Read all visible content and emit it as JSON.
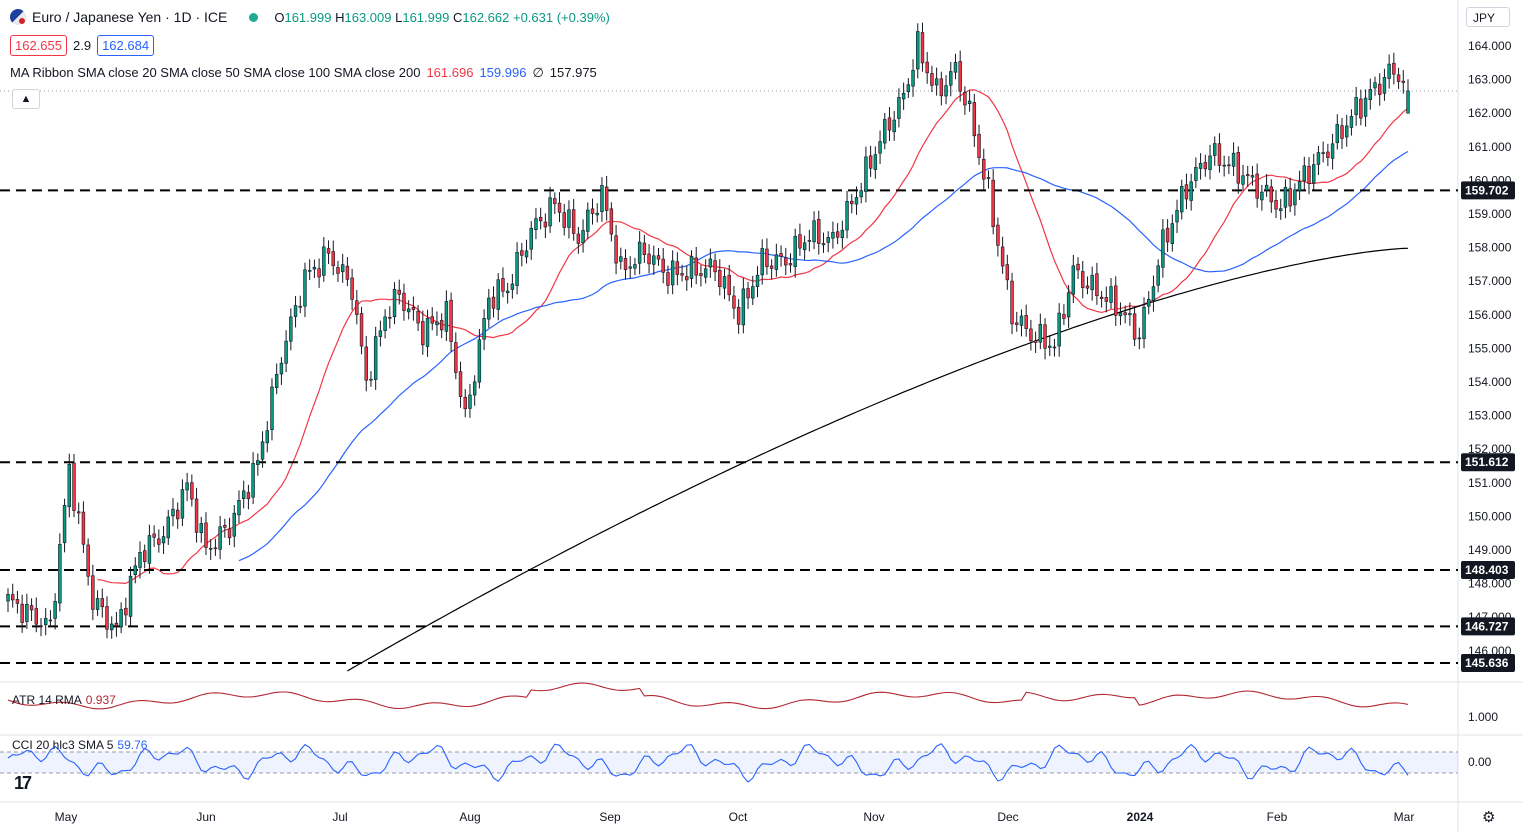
{
  "header": {
    "symbol": "Euro / Japanese Yen · 1D · ICE",
    "ohlc": [
      {
        "k": "O",
        "v": "161.999"
      },
      {
        "k": "H",
        "v": "163.009"
      },
      {
        "k": "L",
        "v": "161.999"
      },
      {
        "k": "C",
        "v": "162.662"
      }
    ],
    "change": "+0.631 (+0.39%)",
    "bid": "162.655",
    "spread": "2.9",
    "ask": "162.684",
    "currency": "JPY",
    "collapse_icon": "chevron-up-icon"
  },
  "ma_ribbon": {
    "label": "MA Ribbon SMA close 20 SMA close 50 SMA close 100 SMA close 200",
    "sma20": "161.696",
    "sma50": "159.996",
    "sma100": "∅",
    "sma200": "157.975",
    "colors": {
      "sma20": "#f23645",
      "sma50": "#2962ff",
      "sma200": "#000000"
    }
  },
  "atr": {
    "label": "ATR 14 RMA",
    "value": "0.937",
    "tick": "1.000",
    "color": "#b22833"
  },
  "cci": {
    "label": "CCI 20 hlc3 SMA 5",
    "value": "59.76",
    "tick": "0.00",
    "color": "#2962ff"
  },
  "chart_data": {
    "type": "candlestick",
    "ylim": [
      145.2,
      164.4
    ],
    "y_ticks": [
      "164.000",
      "163.000",
      "162.000",
      "161.000",
      "160.000",
      "159.000",
      "158.000",
      "157.000",
      "156.000",
      "155.000",
      "154.000",
      "153.000",
      "152.000",
      "151.000",
      "150.000",
      "149.000",
      "148.000",
      "147.000",
      "146.000"
    ],
    "x_ticks": [
      "May",
      "Jun",
      "Jul",
      "Aug",
      "Sep",
      "Oct",
      "Nov",
      "Dec",
      "2024",
      "Feb",
      "Mar"
    ],
    "horizontal_levels": [
      "159.702",
      "151.612",
      "148.403",
      "146.727",
      "145.636"
    ],
    "last_price": 162.662,
    "colors": {
      "up": "#089981",
      "down": "#f23645",
      "level": "#000000"
    },
    "anchors": [
      [
        0,
        147.5
      ],
      [
        9,
        146.7
      ],
      [
        13,
        151.4
      ],
      [
        18,
        147.5
      ],
      [
        23,
        146.6
      ],
      [
        28,
        148.9
      ],
      [
        33,
        149.5
      ],
      [
        38,
        150.9
      ],
      [
        42,
        149.0
      ],
      [
        47,
        149.7
      ],
      [
        53,
        151.6
      ],
      [
        58,
        154.8
      ],
      [
        63,
        157.1
      ],
      [
        68,
        157.8
      ],
      [
        73,
        156.8
      ],
      [
        76,
        154.0
      ],
      [
        80,
        156.0
      ],
      [
        83,
        156.6
      ],
      [
        88,
        155.5
      ],
      [
        93,
        156.0
      ],
      [
        97,
        152.9
      ],
      [
        102,
        156.5
      ],
      [
        106,
        156.8
      ],
      [
        111,
        158.5
      ],
      [
        116,
        159.3
      ],
      [
        121,
        158.3
      ],
      [
        126,
        159.6
      ],
      [
        130,
        157.3
      ],
      [
        135,
        157.9
      ],
      [
        140,
        157.2
      ],
      [
        145,
        157.3
      ],
      [
        150,
        157.4
      ],
      [
        155,
        156.0
      ],
      [
        160,
        157.6
      ],
      [
        165,
        157.6
      ],
      [
        170,
        158.4
      ],
      [
        175,
        158.2
      ],
      [
        180,
        159.6
      ],
      [
        185,
        161.2
      ],
      [
        190,
        162.5
      ],
      [
        193,
        164.0
      ],
      [
        197,
        162.6
      ],
      [
        201,
        163.3
      ],
      [
        204,
        162.0
      ],
      [
        208,
        159.6
      ],
      [
        213,
        156.0
      ],
      [
        217,
        155.4
      ],
      [
        222,
        155.1
      ],
      [
        226,
        157.3
      ],
      [
        230,
        156.8
      ],
      [
        235,
        156.3
      ],
      [
        240,
        155.4
      ],
      [
        245,
        158.1
      ],
      [
        250,
        159.8
      ],
      [
        255,
        160.8
      ],
      [
        260,
        160.4
      ],
      [
        265,
        159.8
      ],
      [
        270,
        159.2
      ],
      [
        276,
        160.3
      ],
      [
        281,
        161.1
      ],
      [
        286,
        162.1
      ],
      [
        291,
        162.9
      ],
      [
        294,
        163.3
      ],
      [
        297,
        162.7
      ]
    ],
    "last_candle": {
      "o": 161.999,
      "h": 163.009,
      "l": 161.999,
      "c": 162.662
    }
  }
}
